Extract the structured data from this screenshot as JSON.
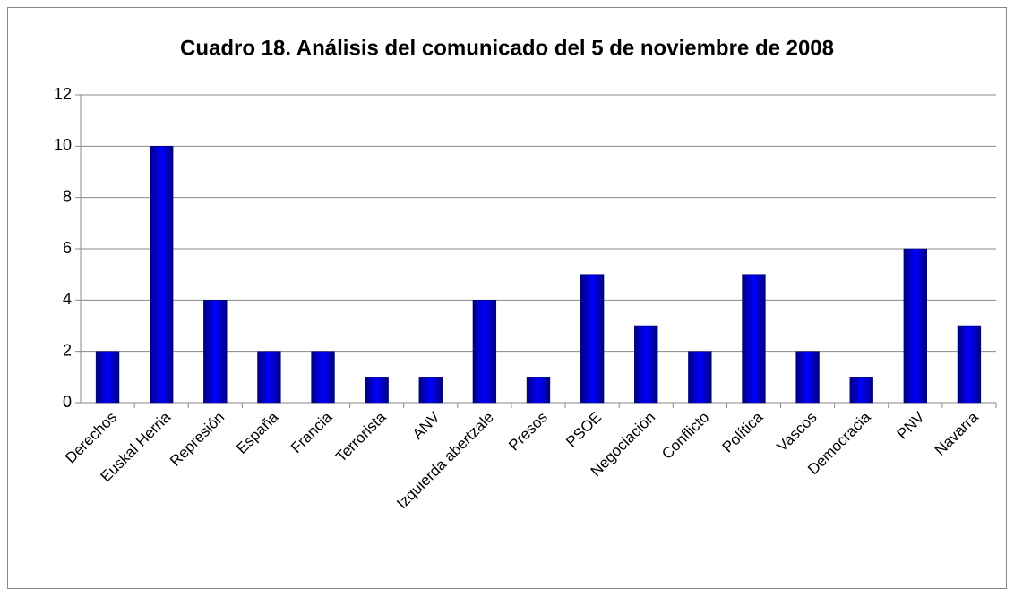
{
  "chart_data": {
    "type": "bar",
    "title": "Cuadro 18. Análisis del comunicado del 5 de noviembre de 2008",
    "categories": [
      "Derechos",
      "Euskal Herria",
      "Represión",
      "España",
      "Francia",
      "Terrorista",
      "ANV",
      "Izquierda abertzale",
      "Presos",
      "PSOE",
      "Negociación",
      "Conflicto",
      "Política",
      "Vascos",
      "Democracia",
      "PNV",
      "Navarra"
    ],
    "values": [
      2,
      10,
      4,
      2,
      2,
      1,
      1,
      4,
      1,
      5,
      3,
      2,
      5,
      2,
      1,
      6,
      3
    ],
    "color": "#0000ff",
    "ylim": [
      0,
      12
    ],
    "yticks": [
      0,
      2,
      4,
      6,
      8,
      10,
      12
    ],
    "grid": true
  }
}
